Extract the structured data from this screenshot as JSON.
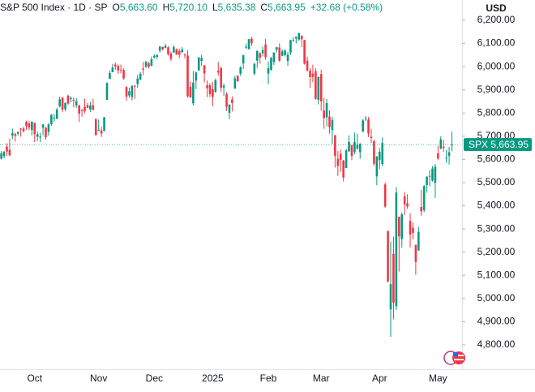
{
  "chart_data": {
    "type": "candlestick",
    "title": "S&P 500 Index · 1D · SP",
    "ohlc_legend": [
      {
        "label": "O",
        "value": "5,663.60"
      },
      {
        "label": "H",
        "value": "5,720.10"
      },
      {
        "label": "L",
        "value": "5,635.38"
      },
      {
        "label": "C",
        "value": "5,663.95"
      }
    ],
    "change": "+32.68 (+0.58%)",
    "currency": "USD",
    "last_price": {
      "name": "SPX",
      "value": 5663.95,
      "label": "5,663.95"
    },
    "up_color": "#089981",
    "down_color": "#f23645",
    "grid": false,
    "ylim": [
      4695,
      6287.5
    ],
    "yticks": [
      {
        "value": 4800,
        "label": "4,800.00"
      },
      {
        "value": 4900,
        "label": "4,900.00"
      },
      {
        "value": 5000,
        "label": "5,000.00"
      },
      {
        "value": 5100,
        "label": "5,100.00"
      },
      {
        "value": 5200,
        "label": "5,200.00"
      },
      {
        "value": 5300,
        "label": "5,300.00"
      },
      {
        "value": 5400,
        "label": "5,400.00"
      },
      {
        "value": 5500,
        "label": "5,500.00"
      },
      {
        "value": 5600,
        "label": "5,600.00"
      },
      {
        "value": 5700,
        "label": "5,700.00"
      },
      {
        "value": 5800,
        "label": "5,800.00"
      },
      {
        "value": 5900,
        "label": "5,900.00"
      },
      {
        "value": 6000,
        "label": "6,000.00"
      },
      {
        "value": 6100,
        "label": "6,100.00"
      },
      {
        "value": 6200,
        "label": "6,200.00"
      }
    ],
    "categories": [
      null,
      null,
      null,
      null,
      null,
      null,
      null,
      null,
      null,
      null,
      null,
      null,
      "Oct",
      null,
      null,
      null,
      null,
      null,
      null,
      null,
      null,
      null,
      null,
      null,
      null,
      null,
      null,
      null,
      null,
      null,
      null,
      null,
      null,
      null,
      null,
      "Nov",
      null,
      null,
      null,
      null,
      null,
      null,
      null,
      null,
      null,
      null,
      null,
      null,
      null,
      null,
      null,
      null,
      null,
      null,
      null,
      "Dec",
      null,
      null,
      null,
      null,
      null,
      null,
      null,
      null,
      null,
      null,
      null,
      null,
      null,
      null,
      null,
      null,
      null,
      null,
      null,
      null,
      "2025",
      null,
      null,
      null,
      null,
      null,
      null,
      null,
      null,
      null,
      null,
      null,
      null,
      null,
      null,
      null,
      null,
      null,
      null,
      null,
      "Feb",
      null,
      null,
      null,
      null,
      null,
      null,
      null,
      null,
      null,
      null,
      null,
      null,
      null,
      null,
      null,
      null,
      null,
      null,
      "Mar",
      null,
      null,
      null,
      null,
      null,
      null,
      null,
      null,
      null,
      null,
      null,
      null,
      null,
      null,
      null,
      null,
      null,
      null,
      null,
      null,
      "Apr",
      null,
      null,
      null,
      null,
      null,
      null,
      null,
      null,
      null,
      null,
      null,
      null,
      null,
      null,
      null,
      null,
      null,
      null,
      null,
      null,
      "May",
      null,
      null,
      null,
      null,
      null
    ],
    "open": [
      5603,
      5614,
      5655,
      5641,
      5703,
      5709,
      5711,
      5733,
      5733,
      5762,
      5755,
      5727,
      5758,
      5698,
      5695,
      5737,
      5737,
      5719,
      5752,
      5778,
      5775,
      5829,
      5866,
      5816,
      5875,
      5860,
      5857,
      5833,
      5834,
      5813,
      5826,
      5834,
      5815,
      5833,
      5775,
      5723,
      5725,
      5722,
      5857,
      5947,
      5976,
      6009,
      6003,
      5986,
      5985,
      5912,
      5876,
      5869,
      5918,
      5925,
      5945,
      5992,
      6000,
      6015,
      6003,
      6040,
      6042,
      6069,
      6085,
      6081,
      6083,
      6057,
      6061,
      6074,
      6068,
      6063,
      6052,
      6048,
      5913,
      5842,
      5940,
      5984,
      6025,
      6006,
      5920,
      5920,
      5903,
      5891,
      5982,
      5994,
      5910,
      5882,
      5801,
      5859,
      5905,
      5960,
      5970,
      6014,
      6082,
      6076,
      6121,
      5970,
      6026,
      6058,
      6058,
      6096,
      5970,
      5986,
      6020,
      6072,
      6083,
      6047,
      6050,
      6025,
      6061,
      6115,
      6121,
      6117,
      6134,
      6115,
      6026,
      5983,
      5970,
      5981,
      5857,
      5968,
      5811,
      5782,
      5785,
      5726,
      5705,
      5603,
      5624,
      5595,
      5563,
      5635,
      5662,
      5632,
      5647,
      5631,
      5719,
      5776,
      5772,
      5698,
      5679,
      5527,
      5597,
      5580,
      5492,
      5292,
      4953,
      5193,
      4967,
      5353,
      5256,
      5441,
      5411,
      5335,
      5305,
      5232,
      5207,
      5395,
      5381,
      5489,
      5529,
      5509,
      5499,
      5626,
      5645,
      5655,
      5605,
      5615,
      5663.6
    ],
    "high": [
      5636,
      5637,
      5670,
      5690,
      5733,
      5716,
      5721,
      5735,
      5741,
      5767,
      5765,
      5765,
      5758,
      5720,
      5715,
      5752,
      5740,
      5757,
      5796,
      5796,
      5823,
      5871,
      5870,
      5846,
      5879,
      5872,
      5866,
      5864,
      5835,
      5817,
      5862,
      5843,
      5848,
      5862,
      5775,
      5772,
      5741,
      5783,
      5933,
      5983,
      6012,
      6018,
      6010,
      6009,
      5993,
      5916,
      5909,
      5920,
      5920,
      5964,
      5977,
      6020,
      6026,
      6021,
      6044,
      6053,
      6053,
      6089,
      6086,
      6099,
      6088,
      6066,
      6092,
      6079,
      6078,
      6085,
      6058,
      6071,
      5936,
      5982,
      5979,
      6040,
      6050,
      6006,
      5940,
      5929,
      5935,
      5949,
      6021,
      6000,
      5927,
      5890,
      5837,
      5871,
      5961,
      5965,
      6002,
      6052,
      6100,
      6119,
      6128,
      6017,
      6070,
      6062,
      6086,
      6120,
      6023,
      6042,
      6062,
      6084,
      6101,
      6074,
      6076,
      6064,
      6116,
      6127,
      6129,
      6147,
      6134,
      6115,
      6043,
      5993,
      6009,
      5994,
      5959,
      5987,
      5866,
      5860,
      5812,
      5783,
      5705,
      5636,
      5642,
      5598,
      5646,
      5704,
      5662,
      5716,
      5711,
      5670,
      5775,
      5787,
      5783,
      5732,
      5685,
      5615,
      5650,
      5695,
      5500,
      5292,
      5246,
      5267,
      5481,
      5353,
      5371,
      5460,
      5450,
      5368,
      5328,
      5232,
      5309,
      5469,
      5489,
      5528,
      5554,
      5571,
      5581,
      5659,
      5700,
      5684,
      5641,
      5654,
      5720.1
    ],
    "low": [
      5600,
      5605,
      5615,
      5615,
      5687,
      5677,
      5702,
      5698,
      5716,
      5728,
      5727,
      5703,
      5675,
      5679,
      5675,
      5704,
      5685,
      5703,
      5745,
      5762,
      5774,
      5824,
      5804,
      5808,
      5835,
      5846,
      5824,
      5822,
      5762,
      5784,
      5799,
      5822,
      5805,
      5813,
      5703,
      5723,
      5697,
      5722,
      5857,
      5947,
      5976,
      5986,
      5969,
      5971,
      5944,
      5854,
      5866,
      5854,
      5861,
      5908,
      5941,
      5963,
      5994,
      5993,
      6003,
      6035,
      6033,
      6061,
      6070,
      6079,
      6048,
      6024,
      6060,
      6051,
      6036,
      6059,
      6035,
      5867,
      5866,
      5832,
      5903,
      5982,
      6003,
      5932,
      5869,
      5869,
      5829,
      5888,
      5961,
      5890,
      5874,
      5809,
      5774,
      5807,
      5905,
      5936,
      5960,
      5990,
      6076,
      6074,
      6089,
      5962,
      5995,
      6013,
      6044,
      6030,
      5924,
      5983,
      6007,
      6061,
      6020,
      6045,
      6044,
      6003,
      6051,
      6107,
      6100,
      6111,
      6084,
      6009,
      5979,
      5908,
      5933,
      5858,
      5837,
      5810,
      5732,
      5742,
      5711,
      5666,
      5565,
      5529,
      5547,
      5505,
      5563,
      5633,
      5597,
      5622,
      5641,
      5603,
      5719,
      5765,
      5697,
      5671,
      5572,
      5489,
      5558,
      5571,
      5391,
      5069,
      4835,
      4910,
      4950,
      5116,
      5220,
      5359,
      5387,
      5220,
      5255,
      5102,
      5207,
      5356,
      5372,
      5456,
      5484,
      5505,
      5434,
      5597,
      5645,
      5632,
      5585,
      5578,
      5635.38
    ],
    "close": [
      5626,
      5633,
      5634,
      5618,
      5713,
      5702,
      5718,
      5732,
      5722,
      5745,
      5738,
      5762,
      5709,
      5709,
      5699,
      5751,
      5696,
      5751,
      5792,
      5780,
      5815,
      5859,
      5815,
      5843,
      5841,
      5865,
      5853,
      5851,
      5797,
      5809,
      5808,
      5823,
      5833,
      5813,
      5705,
      5728,
      5712,
      5782,
      5929,
      5973,
      5996,
      6001,
      5984,
      5985,
      5949,
      5871,
      5894,
      5917,
      5917,
      5949,
      5969,
      5987,
      6021,
      5999,
      6032,
      6047,
      6050,
      6087,
      6075,
      6090,
      6053,
      6034,
      6085,
      6052,
      6051,
      6074,
      6051,
      5872,
      5867,
      5931,
      5975,
      6040,
      6037,
      5971,
      5907,
      5882,
      5869,
      5942,
      5975,
      5909,
      5918,
      5827,
      5837,
      5843,
      5950,
      5937,
      5997,
      6049,
      6086,
      6119,
      6101,
      6012,
      6068,
      6039,
      6071,
      6041,
      5994,
      6038,
      6061,
      6084,
      6026,
      6066,
      6069,
      6052,
      6115,
      6115,
      6129,
      6144,
      6118,
      6013,
      5983,
      5955,
      5956,
      5861,
      5955,
      5850,
      5778,
      5843,
      5739,
      5770,
      5615,
      5572,
      5599,
      5522,
      5639,
      5675,
      5615,
      5675,
      5663,
      5668,
      5768,
      5777,
      5712,
      5693,
      5581,
      5612,
      5633,
      5671,
      5397,
      5074,
      5062,
      4982,
      5457,
      5268,
      5363,
      5406,
      5397,
      5276,
      5283,
      5158,
      5288,
      5376,
      5485,
      5525,
      5529,
      5561,
      5569,
      5604,
      5687,
      5650,
      5607,
      5631,
      5663.95
    ]
  }
}
